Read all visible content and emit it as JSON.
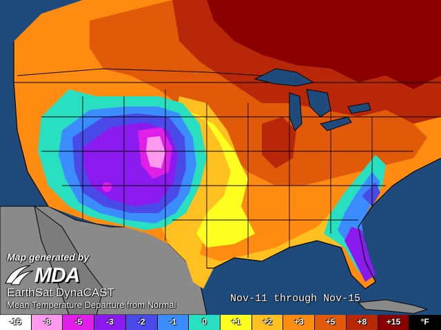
{
  "credit": "Map generated by",
  "logo_text": "MDA",
  "product_name": "EarthSat DynaCAST",
  "subtitle": "Mean Temperature Departure from Normal",
  "date_range": "Nov-11 through Nov-15",
  "legend": [
    {
      "label": "-15",
      "color": "#ffffff"
    },
    {
      "label": "-8",
      "color": "#ff99ee"
    },
    {
      "label": "-5",
      "color": "#e020e8"
    },
    {
      "label": "-3",
      "color": "#8a1aee"
    },
    {
      "label": "-2",
      "color": "#4a4ae8"
    },
    {
      "label": "-1",
      "color": "#3a8cff"
    },
    {
      "label": "0",
      "color": "#28e0c0"
    },
    {
      "label": "+1",
      "color": "#ffff20"
    },
    {
      "label": "+2",
      "color": "#ffc020"
    },
    {
      "label": "+3",
      "color": "#ff8c10"
    },
    {
      "label": "+5",
      "color": "#e05a0a"
    },
    {
      "label": "+8",
      "color": "#b82808"
    },
    {
      "label": "+15",
      "color": "#8a0000"
    },
    {
      "label": "°F",
      "color": "#000000"
    }
  ],
  "colors": {
    "water": "#1e4a7c",
    "land_outside": "#8a8a8a"
  }
}
